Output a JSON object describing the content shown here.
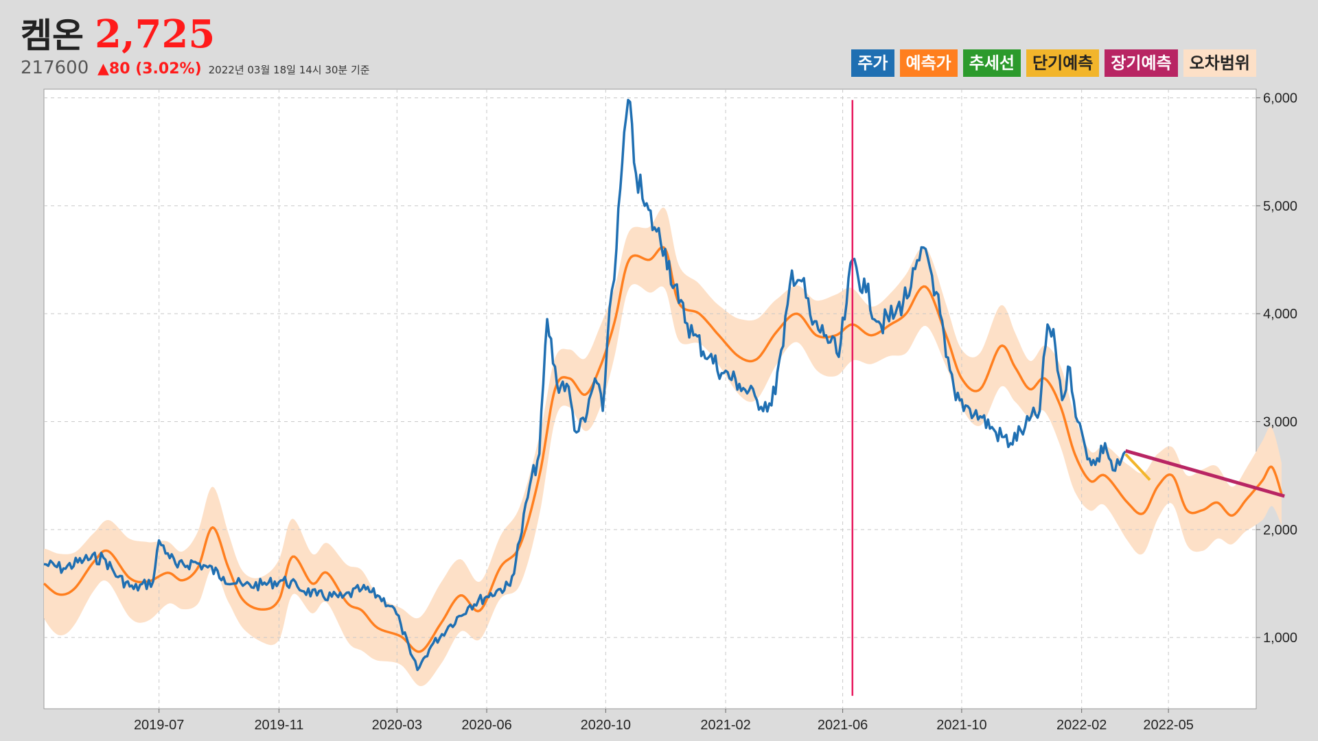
{
  "stock": {
    "name": "켐온",
    "price": "2,725",
    "code": "217600",
    "change": "▲80 (3.02%)",
    "timestamp": "2022년 03월 18일 14시 30분 기준"
  },
  "legend": [
    {
      "label": "주가",
      "color": "#1f6fb2",
      "text_color": "#ffffff"
    },
    {
      "label": "예측가",
      "color": "#ff7f1f",
      "text_color": "#ffffff"
    },
    {
      "label": "추세선",
      "color": "#2c9a2c",
      "text_color": "#ffffff"
    },
    {
      "label": "단기예측",
      "color": "#f2b52b",
      "text_color": "#222222"
    },
    {
      "label": "장기예측",
      "color": "#b82563",
      "text_color": "#ffffff"
    },
    {
      "label": "오차범위",
      "color": "#fde0c7",
      "text_color": "#222222"
    }
  ],
  "chart_data": {
    "type": "line",
    "x_tick_labels": [
      "2019-07",
      "2019-11",
      "2020-03",
      "2020-06",
      "2020-10",
      "2021-02",
      "2021-06",
      "2021-10",
      "2022-02",
      "2022-05"
    ],
    "x_tick_dates": [
      "2019-07-01",
      "2019-11-01",
      "2020-03-01",
      "2020-06-01",
      "2020-10-01",
      "2021-02-01",
      "2021-06-01",
      "2021-10-01",
      "2022-02-01",
      "2022-05-01"
    ],
    "y_tick_labels": [
      "1,000",
      "2,000",
      "3,000",
      "4,000",
      "5,000",
      "6,000"
    ],
    "xlim": [
      "2019-03-05",
      "2022-07-30"
    ],
    "ylim": [
      340,
      6080
    ],
    "grid": true,
    "legend_position": "top-right",
    "vertical_marker_date": "2021-06-11",
    "vertical_marker_range": [
      460,
      5980
    ],
    "series": [
      {
        "name": "주가",
        "color": "#1f6fb2",
        "smooth": false,
        "points": [
          [
            "2019-03-05",
            1680
          ],
          [
            "2019-03-25",
            1640
          ],
          [
            "2019-04-15",
            1720
          ],
          [
            "2019-05-05",
            1740
          ],
          [
            "2019-05-20",
            1560
          ],
          [
            "2019-06-05",
            1450
          ],
          [
            "2019-06-25",
            1520
          ],
          [
            "2019-07-01",
            1900
          ],
          [
            "2019-07-10",
            1780
          ],
          [
            "2019-07-20",
            1650
          ],
          [
            "2019-08-05",
            1700
          ],
          [
            "2019-08-20",
            1650
          ],
          [
            "2019-09-05",
            1560
          ],
          [
            "2019-09-25",
            1480
          ],
          [
            "2019-10-15",
            1490
          ],
          [
            "2019-11-05",
            1530
          ],
          [
            "2019-11-20",
            1470
          ],
          [
            "2019-12-10",
            1390
          ],
          [
            "2020-01-05",
            1370
          ],
          [
            "2020-01-25",
            1450
          ],
          [
            "2020-02-10",
            1390
          ],
          [
            "2020-02-25",
            1290
          ],
          [
            "2020-03-05",
            1120
          ],
          [
            "2020-03-15",
            850
          ],
          [
            "2020-03-22",
            700
          ],
          [
            "2020-04-05",
            920
          ],
          [
            "2020-04-25",
            1120
          ],
          [
            "2020-05-15",
            1300
          ],
          [
            "2020-06-01",
            1380
          ],
          [
            "2020-06-15",
            1450
          ],
          [
            "2020-06-25",
            1480
          ],
          [
            "2020-07-05",
            1900
          ],
          [
            "2020-07-15",
            2400
          ],
          [
            "2020-07-25",
            2700
          ],
          [
            "2020-08-02",
            3950
          ],
          [
            "2020-08-12",
            3350
          ],
          [
            "2020-08-22",
            3350
          ],
          [
            "2020-09-01",
            2900
          ],
          [
            "2020-09-10",
            3000
          ],
          [
            "2020-09-20",
            3400
          ],
          [
            "2020-09-28",
            3100
          ],
          [
            "2020-10-05",
            4050
          ],
          [
            "2020-10-12",
            4600
          ],
          [
            "2020-10-18",
            5400
          ],
          [
            "2020-10-24",
            5980
          ],
          [
            "2020-11-01",
            5300
          ],
          [
            "2020-11-10",
            5000
          ],
          [
            "2020-11-20",
            4800
          ],
          [
            "2020-12-01",
            4600
          ],
          [
            "2020-12-15",
            4100
          ],
          [
            "2020-12-30",
            3800
          ],
          [
            "2021-01-15",
            3600
          ],
          [
            "2021-01-30",
            3450
          ],
          [
            "2021-02-15",
            3350
          ],
          [
            "2021-03-05",
            3200
          ],
          [
            "2021-03-20",
            3150
          ],
          [
            "2021-04-01",
            3700
          ],
          [
            "2021-04-10",
            4400
          ],
          [
            "2021-04-20",
            4300
          ],
          [
            "2021-05-01",
            3900
          ],
          [
            "2021-05-15",
            3800
          ],
          [
            "2021-05-28",
            3600
          ],
          [
            "2021-06-05",
            4100
          ],
          [
            "2021-06-11",
            4500
          ],
          [
            "2021-06-25",
            4200
          ],
          [
            "2021-07-10",
            3900
          ],
          [
            "2021-07-25",
            4000
          ],
          [
            "2021-08-10",
            4250
          ],
          [
            "2021-08-25",
            4600
          ],
          [
            "2021-09-05",
            4200
          ],
          [
            "2021-09-15",
            3600
          ],
          [
            "2021-09-25",
            3200
          ],
          [
            "2021-10-05",
            3150
          ],
          [
            "2021-10-20",
            3050
          ],
          [
            "2021-11-05",
            2900
          ],
          [
            "2021-11-20",
            2800
          ],
          [
            "2021-12-05",
            2950
          ],
          [
            "2021-12-20",
            3100
          ],
          [
            "2021-12-28",
            3900
          ],
          [
            "2022-01-05",
            3700
          ],
          [
            "2022-01-12",
            3200
          ],
          [
            "2022-01-20",
            3500
          ],
          [
            "2022-01-28",
            3000
          ],
          [
            "2022-02-05",
            2750
          ],
          [
            "2022-02-15",
            2600
          ],
          [
            "2022-02-25",
            2800
          ],
          [
            "2022-03-05",
            2550
          ],
          [
            "2022-03-12",
            2600
          ],
          [
            "2022-03-18",
            2725
          ]
        ]
      },
      {
        "name": "예측가",
        "color": "#ff7f1f",
        "smooth": true,
        "points": [
          [
            "2019-03-05",
            1500
          ],
          [
            "2019-03-20",
            1400
          ],
          [
            "2019-04-05",
            1450
          ],
          [
            "2019-04-25",
            1700
          ],
          [
            "2019-05-10",
            1800
          ],
          [
            "2019-06-01",
            1550
          ],
          [
            "2019-06-20",
            1520
          ],
          [
            "2019-07-10",
            1600
          ],
          [
            "2019-07-25",
            1530
          ],
          [
            "2019-08-10",
            1650
          ],
          [
            "2019-08-25",
            2020
          ],
          [
            "2019-09-10",
            1650
          ],
          [
            "2019-09-25",
            1350
          ],
          [
            "2019-10-15",
            1260
          ],
          [
            "2019-11-01",
            1350
          ],
          [
            "2019-11-15",
            1750
          ],
          [
            "2019-12-05",
            1500
          ],
          [
            "2019-12-20",
            1600
          ],
          [
            "2020-01-10",
            1320
          ],
          [
            "2020-01-25",
            1250
          ],
          [
            "2020-02-10",
            1090
          ],
          [
            "2020-03-05",
            1010
          ],
          [
            "2020-03-25",
            870
          ],
          [
            "2020-04-15",
            1130
          ],
          [
            "2020-05-05",
            1390
          ],
          [
            "2020-05-25",
            1250
          ],
          [
            "2020-06-15",
            1650
          ],
          [
            "2020-07-05",
            1850
          ],
          [
            "2020-07-25",
            2500
          ],
          [
            "2020-08-10",
            3300
          ],
          [
            "2020-08-25",
            3400
          ],
          [
            "2020-09-10",
            3250
          ],
          [
            "2020-09-25",
            3500
          ],
          [
            "2020-10-10",
            3920
          ],
          [
            "2020-10-25",
            4500
          ],
          [
            "2020-11-15",
            4500
          ],
          [
            "2020-12-01",
            4600
          ],
          [
            "2020-12-15",
            4100
          ],
          [
            "2021-01-05",
            4000
          ],
          [
            "2021-01-25",
            3800
          ],
          [
            "2021-02-15",
            3600
          ],
          [
            "2021-03-05",
            3580
          ],
          [
            "2021-03-25",
            3830
          ],
          [
            "2021-04-15",
            4000
          ],
          [
            "2021-05-05",
            3800
          ],
          [
            "2021-05-25",
            3800
          ],
          [
            "2021-06-11",
            3900
          ],
          [
            "2021-06-30",
            3800
          ],
          [
            "2021-07-20",
            3900
          ],
          [
            "2021-08-05",
            4000
          ],
          [
            "2021-08-25",
            4250
          ],
          [
            "2021-09-15",
            3800
          ],
          [
            "2021-10-01",
            3400
          ],
          [
            "2021-10-20",
            3300
          ],
          [
            "2021-11-10",
            3700
          ],
          [
            "2021-11-25",
            3500
          ],
          [
            "2021-12-10",
            3300
          ],
          [
            "2021-12-25",
            3400
          ],
          [
            "2022-01-10",
            3150
          ],
          [
            "2022-01-25",
            2700
          ],
          [
            "2022-02-10",
            2450
          ],
          [
            "2022-02-25",
            2500
          ],
          [
            "2022-03-20",
            2250
          ],
          [
            "2022-04-05",
            2150
          ],
          [
            "2022-04-20",
            2400
          ],
          [
            "2022-05-05",
            2500
          ],
          [
            "2022-05-20",
            2180
          ],
          [
            "2022-06-05",
            2180
          ],
          [
            "2022-06-20",
            2250
          ],
          [
            "2022-07-05",
            2130
          ],
          [
            "2022-07-20",
            2280
          ],
          [
            "2022-08-05",
            2450
          ],
          [
            "2022-08-15",
            2580
          ],
          [
            "2022-08-25",
            2330
          ]
        ]
      },
      {
        "name": "단기예측",
        "color": "#f2b52b",
        "smooth": false,
        "points": [
          [
            "2022-03-18",
            2700
          ],
          [
            "2022-04-12",
            2460
          ]
        ]
      },
      {
        "name": "장기예측",
        "color": "#b82563",
        "smooth": false,
        "points": [
          [
            "2022-03-18",
            2730
          ],
          [
            "2022-08-28",
            2310
          ]
        ]
      }
    ],
    "error_band": {
      "name": "오차범위",
      "color": "#fde0c7",
      "halfwidth": 320
    }
  }
}
